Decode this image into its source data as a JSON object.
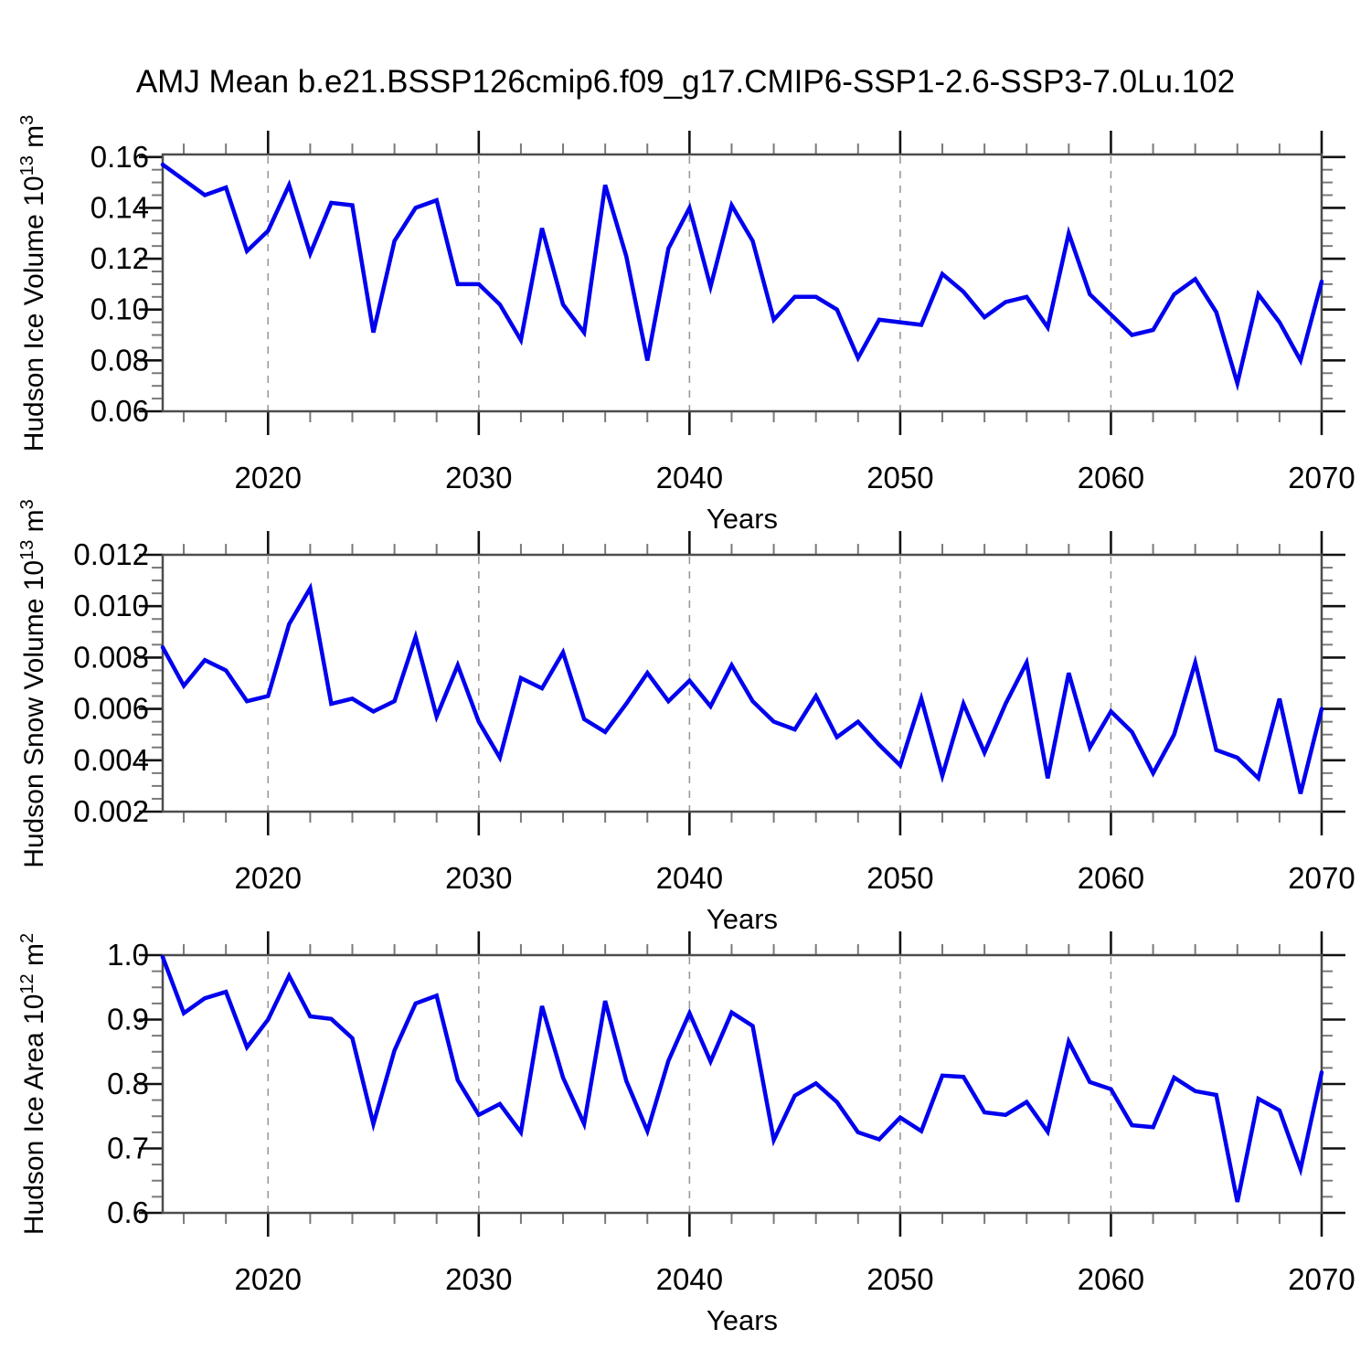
{
  "title": "AMJ Mean b.e21.BSSP126cmip6.f09_g17.CMIP6-SSP1-2.6-SSP3-7.0Lu.102",
  "colors": {
    "line": "#0000ee",
    "grid": "#999999",
    "frame": "#4d4d4d",
    "tick_major": "#111111",
    "tick_minor": "#7a7a7a",
    "text": "#000000"
  },
  "chart_data": [
    {
      "id": "ice-volume",
      "type": "line",
      "ylabel": {
        "prefix": "Hudson Ice Volume 10",
        "exp": "13",
        "unit": " m",
        "unit_exp": "3"
      },
      "xlabel": "Years",
      "xlim": [
        2015,
        2070
      ],
      "ylim": [
        0.06,
        0.161
      ],
      "xticks": [
        2020,
        2030,
        2040,
        2050,
        2060,
        2070
      ],
      "x_minor_step": 2,
      "grid_years": [
        2020,
        2030,
        2040,
        2050,
        2060
      ],
      "ytick_values": [
        0.06,
        0.08,
        0.1,
        0.12,
        0.14,
        0.16
      ],
      "ytick_labels": [
        "0.06",
        "0.08",
        "0.10",
        "0.12",
        "0.14",
        "0.16"
      ],
      "y_major_step": 0.02,
      "y_minor_step": 0.005,
      "x": [
        2015,
        2016,
        2017,
        2018,
        2019,
        2020,
        2021,
        2022,
        2023,
        2024,
        2025,
        2026,
        2027,
        2028,
        2029,
        2030,
        2031,
        2032,
        2033,
        2034,
        2035,
        2036,
        2037,
        2038,
        2039,
        2040,
        2041,
        2042,
        2043,
        2044,
        2045,
        2046,
        2047,
        2048,
        2049,
        2050,
        2051,
        2052,
        2053,
        2054,
        2055,
        2056,
        2057,
        2058,
        2059,
        2060,
        2061,
        2062,
        2063,
        2064,
        2065,
        2066,
        2067,
        2068,
        2069,
        2070
      ],
      "values": [
        0.157,
        0.151,
        0.145,
        0.148,
        0.123,
        0.131,
        0.149,
        0.122,
        0.142,
        0.141,
        0.091,
        0.127,
        0.14,
        0.143,
        0.11,
        0.11,
        0.102,
        0.088,
        0.132,
        0.102,
        0.091,
        0.149,
        0.121,
        0.08,
        0.124,
        0.14,
        0.109,
        0.141,
        0.127,
        0.096,
        0.105,
        0.105,
        0.1,
        0.081,
        0.096,
        0.095,
        0.094,
        0.114,
        0.107,
        0.097,
        0.103,
        0.105,
        0.093,
        0.13,
        0.106,
        0.098,
        0.09,
        0.092,
        0.106,
        0.112,
        0.099,
        0.071,
        0.106,
        0.095,
        0.08,
        0.111
      ]
    },
    {
      "id": "snow-volume",
      "type": "line",
      "ylabel": {
        "prefix": "Hudson Snow Volume 10",
        "exp": "13",
        "unit": " m",
        "unit_exp": "3"
      },
      "xlabel": "Years",
      "xlim": [
        2015,
        2070
      ],
      "ylim": [
        0.002,
        0.012
      ],
      "xticks": [
        2020,
        2030,
        2040,
        2050,
        2060,
        2070
      ],
      "x_minor_step": 2,
      "grid_years": [
        2020,
        2030,
        2040,
        2050,
        2060
      ],
      "ytick_values": [
        0.002,
        0.004,
        0.006,
        0.008,
        0.01,
        0.012
      ],
      "ytick_labels": [
        "0.002",
        "0.004",
        "0.006",
        "0.008",
        "0.010",
        "0.012"
      ],
      "y_major_step": 0.002,
      "y_minor_step": 0.0005,
      "x": [
        2015,
        2016,
        2017,
        2018,
        2019,
        2020,
        2021,
        2022,
        2023,
        2024,
        2025,
        2026,
        2027,
        2028,
        2029,
        2030,
        2031,
        2032,
        2033,
        2034,
        2035,
        2036,
        2037,
        2038,
        2039,
        2040,
        2041,
        2042,
        2043,
        2044,
        2045,
        2046,
        2047,
        2048,
        2049,
        2050,
        2051,
        2052,
        2053,
        2054,
        2055,
        2056,
        2057,
        2058,
        2059,
        2060,
        2061,
        2062,
        2063,
        2064,
        2065,
        2066,
        2067,
        2068,
        2069,
        2070
      ],
      "values": [
        0.0084,
        0.0069,
        0.0079,
        0.0075,
        0.0063,
        0.0065,
        0.0093,
        0.0107,
        0.0062,
        0.0064,
        0.0059,
        0.0063,
        0.0088,
        0.0057,
        0.0077,
        0.0055,
        0.0041,
        0.0072,
        0.0068,
        0.0082,
        0.0056,
        0.0051,
        0.0062,
        0.0074,
        0.0063,
        0.0071,
        0.0061,
        0.0077,
        0.0063,
        0.0055,
        0.0052,
        0.0065,
        0.0049,
        0.0055,
        0.0046,
        0.0038,
        0.0064,
        0.0034,
        0.0062,
        0.0043,
        0.0062,
        0.0078,
        0.0033,
        0.0074,
        0.0045,
        0.0059,
        0.0051,
        0.0035,
        0.005,
        0.0078,
        0.0044,
        0.0041,
        0.0033,
        0.0064,
        0.0027,
        0.006
      ]
    },
    {
      "id": "ice-area",
      "type": "line",
      "ylabel": {
        "prefix": "Hudson Ice Area 10",
        "exp": "12",
        "unit": " m",
        "unit_exp": "2"
      },
      "xlabel": "Years",
      "xlim": [
        2015,
        2070
      ],
      "ylim": [
        0.6,
        1.0
      ],
      "xticks": [
        2020,
        2030,
        2040,
        2050,
        2060,
        2070
      ],
      "x_minor_step": 2,
      "grid_years": [
        2020,
        2030,
        2040,
        2050,
        2060
      ],
      "ytick_values": [
        0.6,
        0.7,
        0.8,
        0.9,
        1.0
      ],
      "ytick_labels": [
        "0.6",
        "0.7",
        "0.8",
        "0.9",
        "1.0"
      ],
      "y_major_step": 0.1,
      "y_minor_step": 0.025,
      "x": [
        2015,
        2016,
        2017,
        2018,
        2019,
        2020,
        2021,
        2022,
        2023,
        2024,
        2025,
        2026,
        2027,
        2028,
        2029,
        2030,
        2031,
        2032,
        2033,
        2034,
        2035,
        2036,
        2037,
        2038,
        2039,
        2040,
        2041,
        2042,
        2043,
        2044,
        2045,
        2046,
        2047,
        2048,
        2049,
        2050,
        2051,
        2052,
        2053,
        2054,
        2055,
        2056,
        2057,
        2058,
        2059,
        2060,
        2061,
        2062,
        2063,
        2064,
        2065,
        2066,
        2067,
        2068,
        2069,
        2070
      ],
      "values": [
        0.997,
        0.91,
        0.933,
        0.943,
        0.857,
        0.9,
        0.968,
        0.905,
        0.901,
        0.871,
        0.738,
        0.852,
        0.925,
        0.937,
        0.806,
        0.752,
        0.769,
        0.725,
        0.921,
        0.81,
        0.738,
        0.929,
        0.805,
        0.727,
        0.836,
        0.91,
        0.835,
        0.911,
        0.89,
        0.713,
        0.782,
        0.801,
        0.772,
        0.725,
        0.714,
        0.748,
        0.727,
        0.813,
        0.811,
        0.756,
        0.752,
        0.772,
        0.726,
        0.866,
        0.803,
        0.792,
        0.736,
        0.733,
        0.81,
        0.789,
        0.783,
        0.617,
        0.777,
        0.759,
        0.668,
        0.818
      ]
    }
  ]
}
